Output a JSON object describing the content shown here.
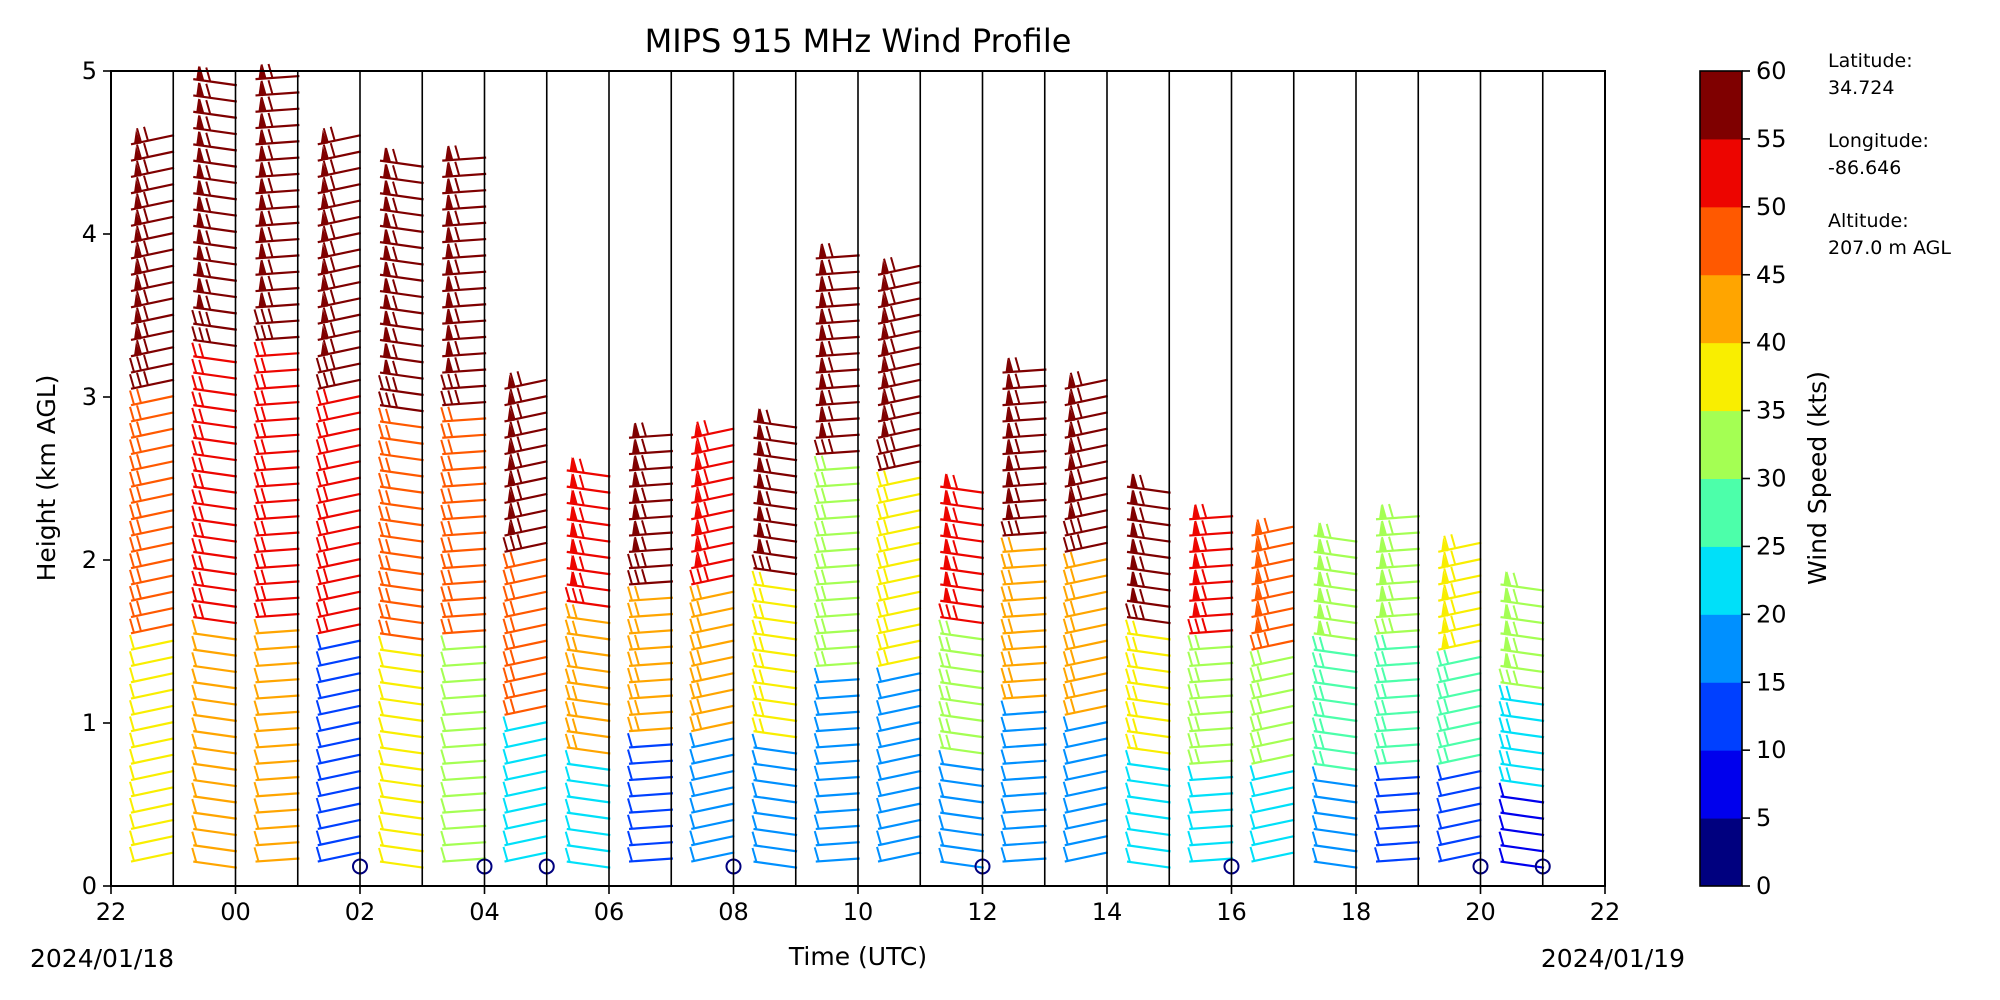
{
  "chart_data": {
    "type": "wind-barb profile",
    "title": "MIPS 915 MHz Wind Profile",
    "xlabel": "Time (UTC)",
    "ylabel": "Height (km AGL)",
    "x_ticks": [
      "22",
      "00",
      "02",
      "04",
      "06",
      "08",
      "10",
      "12",
      "14",
      "16",
      "18",
      "20",
      "22"
    ],
    "x_range_hours": [
      22,
      46
    ],
    "y_ticks": [
      "0",
      "1",
      "2",
      "3",
      "4",
      "5"
    ],
    "ylim": [
      0,
      5
    ],
    "start_date_label": "2024/01/18",
    "end_date_label": "2024/01/19",
    "grid": "vertical lines each hour",
    "colorbar": {
      "label": "Wind Speed (kts)",
      "ticks": [
        "0",
        "5",
        "10",
        "15",
        "20",
        "25",
        "30",
        "35",
        "40",
        "45",
        "50",
        "55",
        "60"
      ],
      "colors": [
        "#00007f",
        "#0000ed",
        "#0040ff",
        "#0090ff",
        "#00e0f9",
        "#4cffaa",
        "#a4ff53",
        "#f9ee00",
        "#ffa500",
        "#ff5900",
        "#ed0500",
        "#7f0000"
      ]
    },
    "profiles": [
      {
        "hour": 22,
        "top": 4.6,
        "color_top": "#7f0000",
        "color_mid": "#ff5900",
        "color_low": "#f9ee00"
      },
      {
        "hour": 23,
        "top": 4.95,
        "color_top": "#7f0000",
        "color_mid": "#ed0500",
        "color_low": "#ffa500"
      },
      {
        "hour": 24,
        "top": 4.95,
        "color_top": "#7f0000",
        "color_mid": "#ed0500",
        "color_low": "#ffa500"
      },
      {
        "hour": 25,
        "top": 4.6,
        "color_top": "#7f0000",
        "color_mid": "#ed0500",
        "color_low": "#0040ff"
      },
      {
        "hour": 26,
        "top": 4.45,
        "color_top": "#7f0000",
        "color_mid": "#ff5900",
        "color_low": "#f9ee00"
      },
      {
        "hour": 27,
        "top": 4.45,
        "color_top": "#7f0000",
        "color_mid": "#ff5900",
        "color_low": "#a4ff53"
      },
      {
        "hour": 28,
        "top": 3.05,
        "color_top": "#7f0000",
        "color_mid": "#ff5900",
        "color_low": "#00e0f9"
      },
      {
        "hour": 29,
        "top": 2.55,
        "color_top": "#ed0500",
        "color_mid": "#ffa500",
        "color_low": "#00e0f9"
      },
      {
        "hour": 30,
        "top": 2.8,
        "color_top": "#7f0000",
        "color_mid": "#ffa500",
        "color_low": "#0040ff"
      },
      {
        "hour": 31,
        "top": 2.75,
        "color_top": "#ed0500",
        "color_mid": "#ffa500",
        "color_low": "#0090ff"
      },
      {
        "hour": 32,
        "top": 2.85,
        "color_top": "#7f0000",
        "color_mid": "#f9ee00",
        "color_low": "#0090ff"
      },
      {
        "hour": 33,
        "top": 3.9,
        "color_top": "#7f0000",
        "color_mid": "#a4ff53",
        "color_low": "#0090ff"
      },
      {
        "hour": 34,
        "top": 3.8,
        "color_top": "#7f0000",
        "color_mid": "#f9ee00",
        "color_low": "#0090ff"
      },
      {
        "hour": 35,
        "top": 2.45,
        "color_top": "#ed0500",
        "color_mid": "#a4ff53",
        "color_low": "#0090ff"
      },
      {
        "hour": 36,
        "top": 3.2,
        "color_top": "#7f0000",
        "color_mid": "#ffa500",
        "color_low": "#0090ff"
      },
      {
        "hour": 37,
        "top": 3.1,
        "color_top": "#7f0000",
        "color_mid": "#ffa500",
        "color_low": "#0090ff"
      },
      {
        "hour": 38,
        "top": 2.45,
        "color_top": "#7f0000",
        "color_mid": "#f9ee00",
        "color_low": "#00e0f9"
      },
      {
        "hour": 39,
        "top": 2.25,
        "color_top": "#ed0500",
        "color_mid": "#a4ff53",
        "color_low": "#00e0f9"
      },
      {
        "hour": 40,
        "top": 2.15,
        "color_top": "#ff5900",
        "color_mid": "#a4ff53",
        "color_low": "#00e0f9"
      },
      {
        "hour": 41,
        "top": 2.2,
        "color_top": "#a4ff53",
        "color_mid": "#4cffaa",
        "color_low": "#0090ff"
      },
      {
        "hour": 42,
        "top": 2.25,
        "color_top": "#a4ff53",
        "color_mid": "#4cffaa",
        "color_low": "#0040ff"
      },
      {
        "hour": 43,
        "top": 2.05,
        "color_top": "#f9ee00",
        "color_mid": "#4cffaa",
        "color_low": "#0040ff"
      },
      {
        "hour": 44,
        "top": 1.85,
        "color_top": "#a4ff53",
        "color_mid": "#00e0f9",
        "color_low": "#0000ed"
      }
    ],
    "calm_markers_hours": [
      26,
      28,
      29,
      32,
      36,
      40,
      44,
      45
    ]
  },
  "side_info": {
    "latitude_label": "Latitude:",
    "latitude_value": "34.724",
    "longitude_label": "Longitude:",
    "longitude_value": "-86.646",
    "altitude_label": "Altitude:",
    "altitude_value": "207.0 m AGL"
  }
}
